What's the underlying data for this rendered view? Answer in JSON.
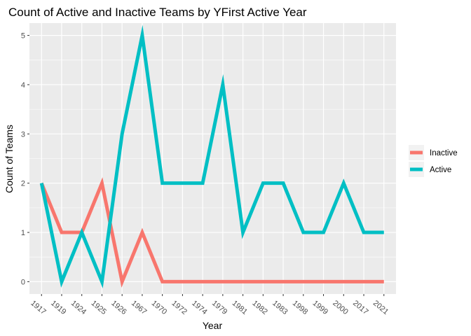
{
  "chart_data": {
    "type": "line",
    "title": "Count of Active and Inactive Teams by YFirst Active Year",
    "xlabel": "Year",
    "ylabel": "Count of Teams",
    "categories": [
      "1917",
      "1919",
      "1924",
      "1925",
      "1926",
      "1967",
      "1970",
      "1972",
      "1974",
      "1979",
      "1981",
      "1982",
      "1983",
      "1998",
      "1999",
      "2000",
      "2017",
      "2021"
    ],
    "ylim": [
      -0.25,
      5.25
    ],
    "yticks": [
      0,
      1,
      2,
      3,
      4,
      5
    ],
    "grid": true,
    "legend_position": "right",
    "series": [
      {
        "name": "Inactive",
        "color": "#F8766D",
        "values": [
          2,
          1,
          1,
          2,
          0,
          1,
          0,
          0,
          0,
          0,
          0,
          0,
          0,
          0,
          0,
          0,
          0,
          0
        ]
      },
      {
        "name": "Active",
        "color": "#00BFC4",
        "values": [
          2,
          0,
          1,
          0,
          3,
          5,
          2,
          2,
          2,
          4,
          1,
          2,
          2,
          1,
          1,
          2,
          1,
          1
        ]
      }
    ]
  }
}
